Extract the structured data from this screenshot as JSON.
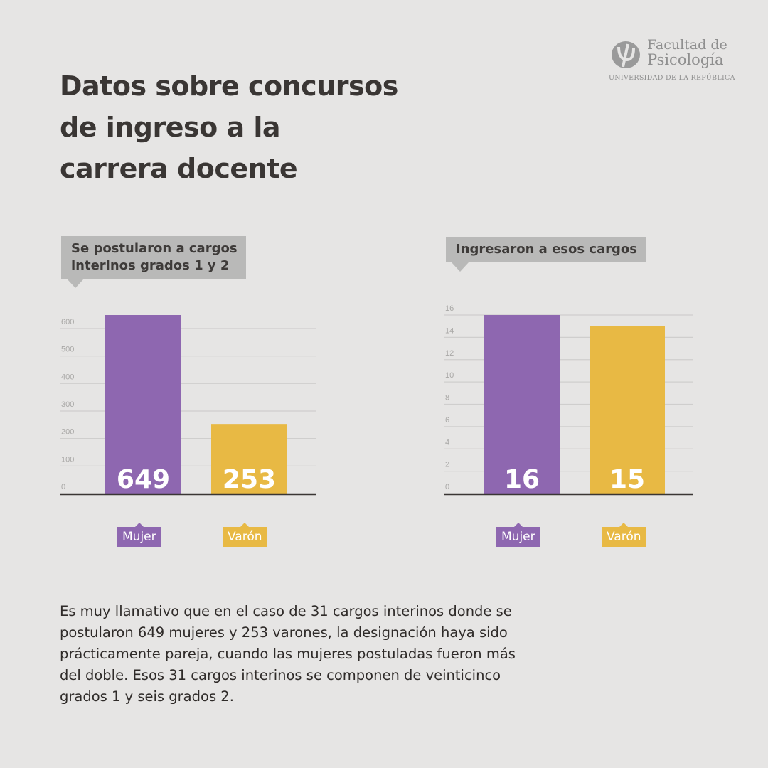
{
  "header": {
    "title_lines": [
      "Datos sobre concursos",
      "de ingreso a la",
      "carrera docente"
    ]
  },
  "logo": {
    "line1": "Facultad de",
    "line2": "Psicología",
    "line3": "UNIVERSIDAD DE LA REPÚBLICA",
    "icon": "psi-logo-icon"
  },
  "colors": {
    "mujer": "#8e67b0",
    "varon": "#e8b944",
    "bubble": "#b9b9b8",
    "background": "#e6e5e4",
    "text": "#3a3634"
  },
  "chart_data": [
    {
      "type": "bar",
      "title": "Se postularon a cargos interinos grados 1 y 2",
      "title_lines": [
        "Se postularon a cargos",
        "interinos grados 1 y 2"
      ],
      "categories": [
        "Mujer",
        "Varón"
      ],
      "values": [
        649,
        253
      ],
      "value_labels": [
        "649",
        "253"
      ],
      "ylim": [
        0,
        649
      ],
      "yticks": [
        0,
        100,
        200,
        300,
        400,
        500,
        600
      ],
      "ytick_labels": [
        "0",
        "100",
        "200",
        "300",
        "400",
        "500",
        "600"
      ],
      "xlabel": "",
      "ylabel": "",
      "grid": true,
      "legend": "bottom"
    },
    {
      "type": "bar",
      "title": "Ingresaron a esos cargos",
      "title_lines": [
        "Ingresaron a esos cargos"
      ],
      "categories": [
        "Mujer",
        "Varón"
      ],
      "values": [
        16,
        15
      ],
      "value_labels": [
        "16",
        "15"
      ],
      "ylim": [
        0,
        16
      ],
      "yticks": [
        0,
        2,
        4,
        6,
        8,
        10,
        12,
        14,
        16
      ],
      "ytick_labels": [
        "0",
        "2",
        "4",
        "6",
        "8",
        "10",
        "12",
        "14",
        "16"
      ],
      "xlabel": "",
      "ylabel": "",
      "grid": true,
      "legend": "bottom"
    }
  ],
  "body": {
    "lines": [
      "Es muy llamativo que en el caso de 31 cargos interinos donde se",
      "postularon 649 mujeres y 253 varones, la designación haya sido",
      "prácticamente pareja, cuando las mujeres postuladas fueron más",
      "del doble. Esos 31 cargos interinos se componen de veinticinco",
      "grados 1 y seis grados 2."
    ]
  }
}
